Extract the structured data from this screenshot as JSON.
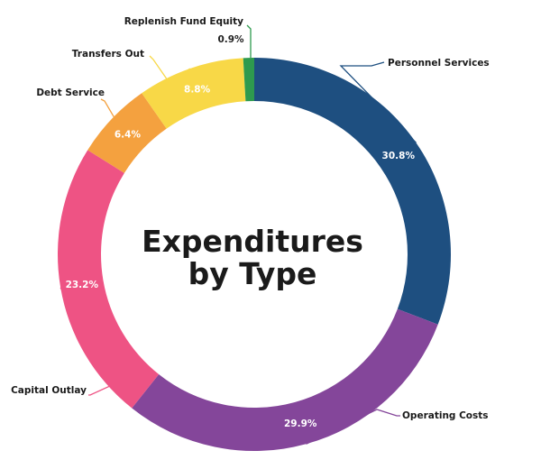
{
  "chart_data": {
    "type": "pie",
    "variant": "donut",
    "title_lines": [
      "Expenditures",
      "by Type"
    ],
    "slices": [
      {
        "label": "Personnel Services",
        "value": 30.8,
        "value_label": "30.8%",
        "color": "#1e4f80"
      },
      {
        "label": "Operating Costs",
        "value": 29.9,
        "value_label": "29.9%",
        "color": "#84469a"
      },
      {
        "label": "Capital Outlay",
        "value": 23.2,
        "value_label": "23.2%",
        "color": "#ee5384"
      },
      {
        "label": "Debt Service",
        "value": 6.4,
        "value_label": "6.4%",
        "color": "#f4a13f"
      },
      {
        "label": "Transfers Out",
        "value": 8.8,
        "value_label": "8.8%",
        "color": "#f8d847"
      },
      {
        "label": "Replenish Fund Equity",
        "value": 0.9,
        "value_label": "0.9%",
        "color": "#2e9a4e"
      }
    ]
  }
}
